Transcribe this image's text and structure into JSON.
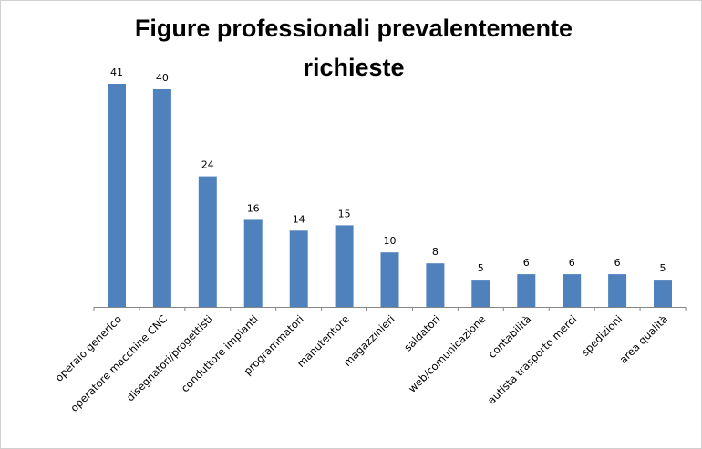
{
  "chart_data": {
    "type": "bar",
    "title": "Figure professionali prevalentemente richieste",
    "categories": [
      "operaio generico",
      "operatore macchine CNC",
      "disegnatori/progettisti",
      "conduttore impianti",
      "programmatori",
      "manutentore",
      "magazzinieri",
      "saldatori",
      "web/comunicazione",
      "contabilità",
      "autista trasporto merci",
      "spedizioni",
      "area qualità"
    ],
    "values": [
      41,
      40,
      24,
      16,
      14,
      15,
      10,
      8,
      5,
      6,
      6,
      6,
      5
    ],
    "data_labels": [
      "41",
      "40",
      "24",
      "16",
      "14",
      "15",
      "10",
      "8",
      "5",
      "6",
      "6",
      "6",
      "5"
    ],
    "xlabel": "",
    "ylabel": "",
    "ylim": [
      0,
      41
    ],
    "grid": false,
    "legend": "none",
    "bar_color": "#4F81BD",
    "axis_color": "#868686"
  }
}
